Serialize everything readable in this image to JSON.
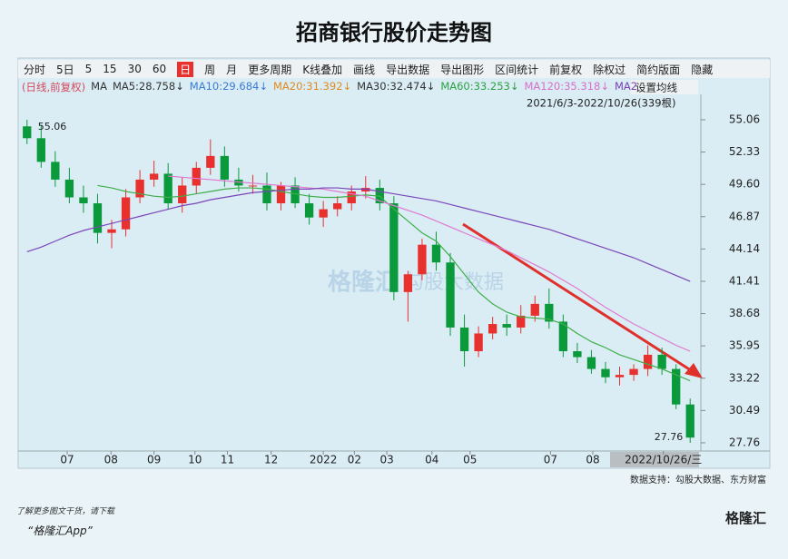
{
  "header": {
    "title": "招商银行股价走势图"
  },
  "toolbar": [
    "分时",
    "5日",
    "5",
    "15",
    "30",
    "60",
    "日",
    "周",
    "月",
    "更多周期",
    "K线叠加",
    "画线",
    "导出数据",
    "导出图形",
    "区间统计",
    "前复权",
    "除权过",
    "简约版面",
    "隐藏"
  ],
  "legend": [
    {
      "text": "(日线,前复权)",
      "color": "#d4485c"
    },
    {
      "text": "MA",
      "color": "#333333"
    },
    {
      "text": "MA5:28.758↓",
      "color": "#333333"
    },
    {
      "text": "MA10:29.684↓",
      "color": "#3a7bd5"
    },
    {
      "text": "MA20:31.392↓",
      "color": "#e08a1e"
    },
    {
      "text": "MA30:32.474↓",
      "color": "#333333"
    },
    {
      "text": "MA60:33.253↓",
      "color": "#2ea043"
    },
    {
      "text": "MA120:35.318↓",
      "color": "#d66fc8"
    },
    {
      "text": "MA2",
      "color": "#7a3fb0"
    }
  ],
  "settings_button": "设置均线",
  "range_label": "2021/6/3-2022/10/26(339根)",
  "watermark": {
    "brand": "格隆汇",
    "sub": "勾股大数据"
  },
  "source": "数据支持：勾股大数据、东方财富",
  "footer": {
    "line1": "了解更多图文干货，请下载",
    "line2": "“格隆汇App”",
    "logo": "格隆汇"
  },
  "chart_data": {
    "type": "candlestick",
    "up_color": "#e8312f",
    "down_color": "#0a9a3c",
    "open": [
      54.5,
      53.5,
      51.5,
      50,
      48.5,
      48,
      45.5,
      45.8,
      48.5,
      50,
      50.5,
      48,
      49.5,
      51,
      52,
      50,
      49.5,
      49.5,
      48,
      49.5,
      48,
      46.8,
      47.5,
      48,
      49,
      49.3,
      48,
      40.5,
      42,
      44.5,
      43,
      37.5,
      35.5,
      37,
      37.8,
      37.5,
      38.5,
      39.5,
      38,
      35.5,
      35,
      34,
      33.3,
      33.5,
      34,
      35.2,
      34,
      31
    ],
    "high": [
      55.06,
      54.6,
      52.4,
      51,
      49.5,
      48.8,
      46.6,
      49.2,
      50.8,
      51.6,
      51.4,
      50.2,
      51.5,
      53.4,
      52.8,
      51,
      50.4,
      50.6,
      49.8,
      50.2,
      48.8,
      48.2,
      48.6,
      49.5,
      50.3,
      50,
      48.6,
      42.3,
      45,
      45.6,
      43.8,
      38.6,
      37.6,
      38.4,
      38.6,
      39.4,
      40.2,
      40.8,
      38.6,
      36.2,
      35.6,
      34.6,
      34.2,
      34.4,
      36,
      35.8,
      34.4,
      31.5
    ],
    "low": [
      53,
      51,
      49.4,
      48,
      47.2,
      44.6,
      44.2,
      45.2,
      48,
      49.4,
      47.5,
      47.2,
      48.8,
      50.4,
      49.4,
      49,
      48.8,
      47.4,
      47.4,
      47.6,
      46.2,
      46,
      46.9,
      47.4,
      48.4,
      47.4,
      39.8,
      38,
      41.5,
      42.3,
      36.8,
      34.2,
      35,
      36.5,
      36.8,
      37,
      38,
      37.4,
      35,
      34.5,
      33.6,
      32.8,
      32.6,
      33,
      33.4,
      33.5,
      30.6,
      27.76
    ],
    "close": [
      53.5,
      51.5,
      50,
      48.5,
      48,
      45.5,
      45.8,
      48.5,
      50,
      50.5,
      48,
      49.5,
      51,
      52,
      50,
      49.5,
      49.5,
      48,
      49.5,
      48,
      46.8,
      47.5,
      48,
      49,
      49.3,
      48,
      40.5,
      42,
      44.5,
      43,
      37.5,
      35.5,
      37,
      37.8,
      37.5,
      38.5,
      39.5,
      38,
      35.5,
      35,
      34,
      33.3,
      33.5,
      34,
      35.2,
      34,
      31,
      28.2
    ],
    "series": [
      {
        "name": "MA60",
        "color": "#3fae49",
        "values": [
          null,
          null,
          null,
          null,
          null,
          49.5,
          49.3,
          49.0,
          48.8,
          48.6,
          48.5,
          48.6,
          48.8,
          49.0,
          49.2,
          49.3,
          49.3,
          49.2,
          49.0,
          48.8,
          48.6,
          48.5,
          48.5,
          48.6,
          48.7,
          48.6,
          47.5,
          46.5,
          45.5,
          44.8,
          43.5,
          42.0,
          40.5,
          39.5,
          38.8,
          38.4,
          38.3,
          38.2,
          37.8,
          37.0,
          36.3,
          35.8,
          35.2,
          34.8,
          34.4,
          34.0,
          33.5,
          33.0
        ]
      },
      {
        "name": "MA120",
        "color": "#e07ad0",
        "values": [
          null,
          null,
          null,
          null,
          null,
          null,
          null,
          null,
          null,
          null,
          50.3,
          50.2,
          50.1,
          50.0,
          49.9,
          49.8,
          49.7,
          49.6,
          49.5,
          49.4,
          49.3,
          49.2,
          49.0,
          48.8,
          48.6,
          48.2,
          47.8,
          47.4,
          47.0,
          46.5,
          46.0,
          45.5,
          45.0,
          44.5,
          44.0,
          43.4,
          42.8,
          42.2,
          41.5,
          40.8,
          40.0,
          39.2,
          38.5,
          37.8,
          37.2,
          36.6,
          36.0,
          35.5
        ]
      },
      {
        "name": "MA250",
        "color": "#7b45b8",
        "values": [
          43.9,
          44.3,
          44.8,
          45.3,
          45.7,
          46.0,
          46.3,
          46.6,
          46.9,
          47.2,
          47.5,
          47.8,
          48.0,
          48.3,
          48.5,
          48.7,
          48.9,
          49.0,
          49.1,
          49.2,
          49.2,
          49.3,
          49.3,
          49.2,
          49.2,
          49.0,
          48.8,
          48.6,
          48.4,
          48.2,
          47.9,
          47.6,
          47.3,
          47.0,
          46.7,
          46.4,
          46.1,
          45.8,
          45.4,
          45.0,
          44.6,
          44.2,
          43.8,
          43.4,
          42.9,
          42.4,
          41.9,
          41.4
        ]
      }
    ],
    "ylim": [
      27.22,
      56.13
    ],
    "yticks": [
      27.76,
      30.49,
      33.22,
      35.95,
      38.68,
      41.41,
      44.14,
      46.87,
      {
        "value": 49.6,
        "label": "49.60"
      },
      52.33,
      55.06
    ],
    "xlim": [
      0,
      48
    ],
    "xticks": [
      {
        "value": 3.35,
        "label": "07"
      },
      {
        "value": 6.45,
        "label": "08"
      },
      {
        "value": 9.5,
        "label": "09"
      },
      {
        "value": 12.4,
        "label": "10"
      },
      {
        "value": 14.7,
        "label": "11"
      },
      {
        "value": 17.8,
        "label": "12"
      },
      {
        "value": 21.5,
        "label": "2022"
      },
      {
        "value": 23.7,
        "label": "02"
      },
      {
        "value": 26,
        "label": "03"
      },
      {
        "value": 29.2,
        "label": "04"
      },
      {
        "value": 31.9,
        "label": "05"
      },
      {
        "value": 37.6,
        "label": "07"
      },
      {
        "value": 40.6,
        "label": "08"
      },
      {
        "value": 45.6,
        "label": "2022/10/26/三"
      }
    ],
    "annotations": [
      {
        "text": "55.06",
        "value": 55.06,
        "index": 0
      },
      {
        "text": "27.76",
        "value": 27.76,
        "index": 47
      }
    ],
    "grid": false
  }
}
